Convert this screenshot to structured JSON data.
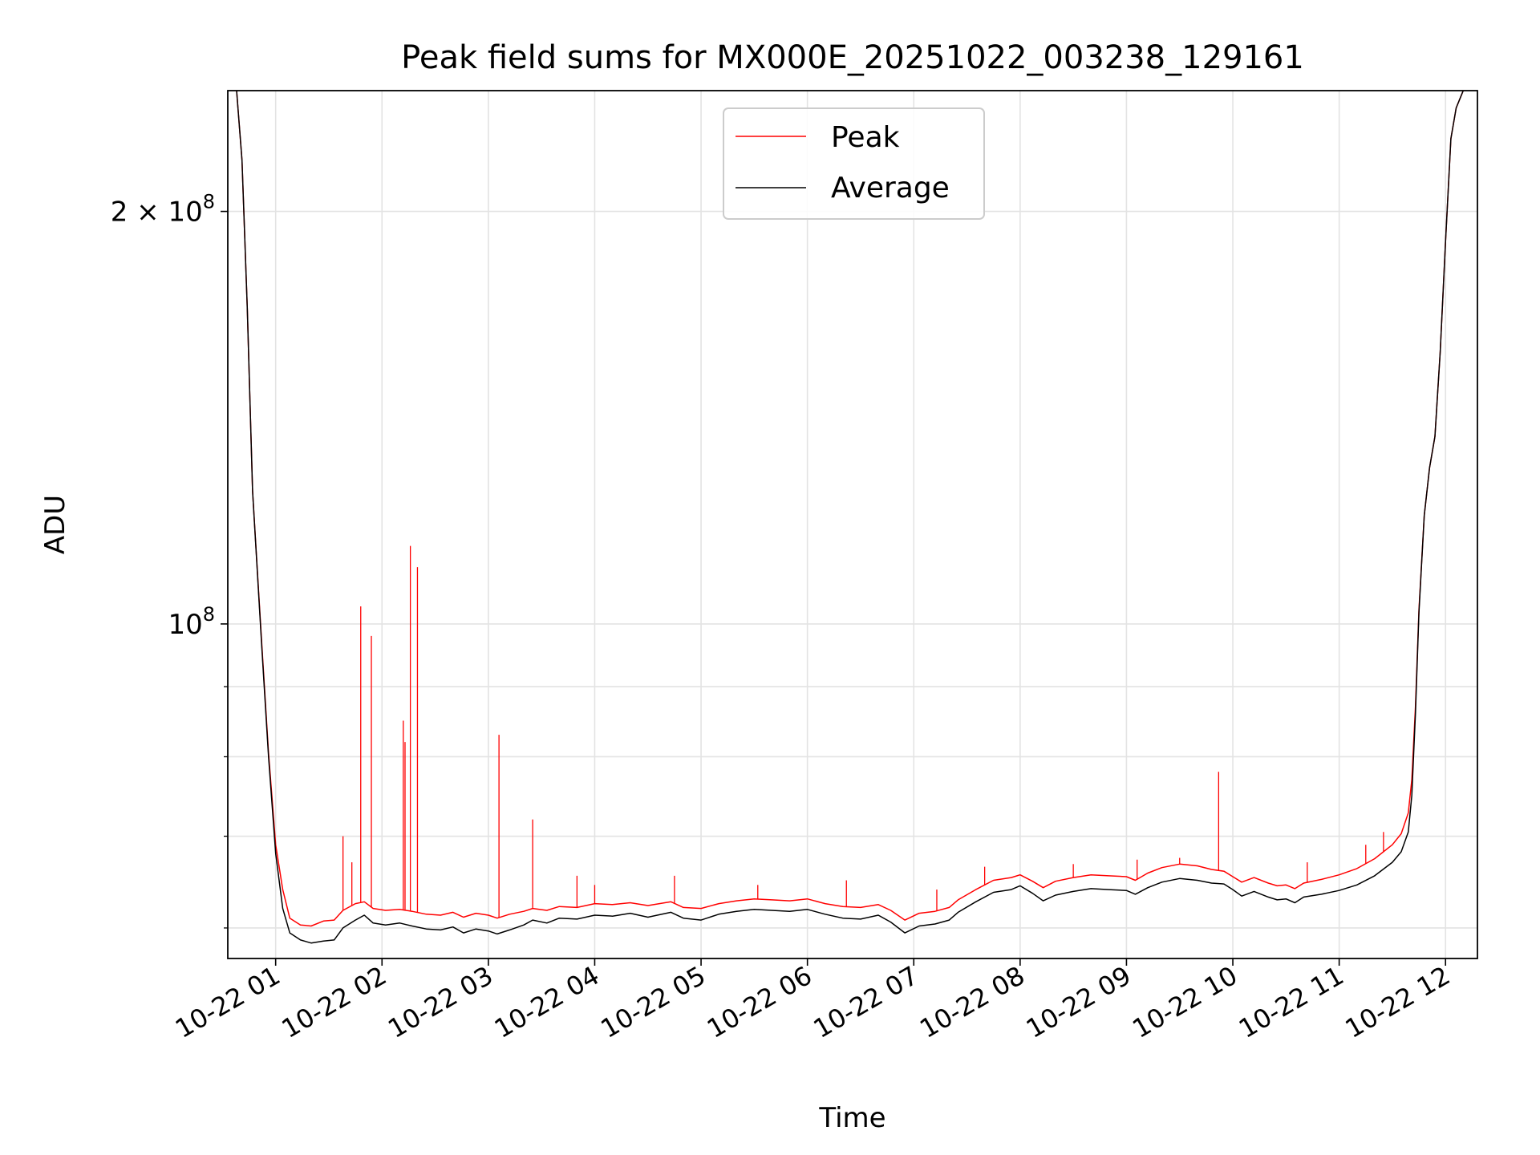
{
  "chart_data": {
    "type": "line",
    "title": "Peak field sums for MX000E_20251022_003238_129161",
    "xlabel": "Time",
    "ylabel": "ADU",
    "xlim": [
      "2025-10-22 00:33",
      "2025-10-22 12:18"
    ],
    "ylim": [
      57000000,
      245000000
    ],
    "yscale": "log",
    "grid": true,
    "legend": {
      "placement": "top-center",
      "entries": [
        "Peak",
        "Average"
      ]
    },
    "x_ticks": [
      {
        "time": "2025-10-22 01:00",
        "label": "10-22 01"
      },
      {
        "time": "2025-10-22 02:00",
        "label": "10-22 02"
      },
      {
        "time": "2025-10-22 03:00",
        "label": "10-22 03"
      },
      {
        "time": "2025-10-22 04:00",
        "label": "10-22 04"
      },
      {
        "time": "2025-10-22 05:00",
        "label": "10-22 05"
      },
      {
        "time": "2025-10-22 06:00",
        "label": "10-22 06"
      },
      {
        "time": "2025-10-22 07:00",
        "label": "10-22 07"
      },
      {
        "time": "2025-10-22 08:00",
        "label": "10-22 08"
      },
      {
        "time": "2025-10-22 09:00",
        "label": "10-22 09"
      },
      {
        "time": "2025-10-22 10:00",
        "label": "10-22 10"
      },
      {
        "time": "2025-10-22 11:00",
        "label": "10-22 11"
      },
      {
        "time": "2025-10-22 12:00",
        "label": "10-22 12"
      }
    ],
    "y_major_ticks": [
      {
        "value": 100000000,
        "base": "10",
        "exp": "8",
        "coef": ""
      },
      {
        "value": 200000000,
        "base": "10",
        "exp": "8",
        "coef": "2"
      }
    ],
    "y_minor_ticks": [
      60000000,
      70000000,
      80000000,
      90000000
    ],
    "series": [
      {
        "name": "Average",
        "color": "#000000",
        "points": [
          [
            "00:38",
            245000000
          ],
          [
            "00:41",
            218000000
          ],
          [
            "00:44",
            170000000
          ],
          [
            "00:47",
            125000000
          ],
          [
            "00:52",
            97000000
          ],
          [
            "00:56",
            80000000
          ],
          [
            "01:00",
            68000000
          ],
          [
            "01:04",
            62000000
          ],
          [
            "01:08",
            59500000
          ],
          [
            "01:14",
            58800000
          ],
          [
            "01:20",
            58500000
          ],
          [
            "01:27",
            58700000
          ],
          [
            "01:33",
            58800000
          ],
          [
            "01:38",
            60000000
          ],
          [
            "01:45",
            60800000
          ],
          [
            "01:50",
            61300000
          ],
          [
            "01:55",
            60500000
          ],
          [
            "02:02",
            60300000
          ],
          [
            "02:10",
            60500000
          ],
          [
            "02:17",
            60200000
          ],
          [
            "02:25",
            59900000
          ],
          [
            "02:33",
            59800000
          ],
          [
            "02:40",
            60100000
          ],
          [
            "02:46",
            59500000
          ],
          [
            "02:53",
            59900000
          ],
          [
            "03:00",
            59700000
          ],
          [
            "03:05",
            59400000
          ],
          [
            "03:12",
            59800000
          ],
          [
            "03:20",
            60300000
          ],
          [
            "03:25",
            60800000
          ],
          [
            "03:33",
            60500000
          ],
          [
            "03:40",
            61000000
          ],
          [
            "03:50",
            60900000
          ],
          [
            "04:00",
            61300000
          ],
          [
            "04:10",
            61200000
          ],
          [
            "04:20",
            61500000
          ],
          [
            "04:30",
            61100000
          ],
          [
            "04:43",
            61600000
          ],
          [
            "04:50",
            61000000
          ],
          [
            "05:00",
            60800000
          ],
          [
            "05:10",
            61400000
          ],
          [
            "05:20",
            61700000
          ],
          [
            "05:30",
            61900000
          ],
          [
            "05:40",
            61800000
          ],
          [
            "05:50",
            61700000
          ],
          [
            "06:00",
            61900000
          ],
          [
            "06:10",
            61400000
          ],
          [
            "06:20",
            61000000
          ],
          [
            "06:30",
            60900000
          ],
          [
            "06:40",
            61300000
          ],
          [
            "06:47",
            60600000
          ],
          [
            "06:55",
            59500000
          ],
          [
            "07:03",
            60200000
          ],
          [
            "07:12",
            60400000
          ],
          [
            "07:20",
            60800000
          ],
          [
            "07:25",
            61600000
          ],
          [
            "07:35",
            62700000
          ],
          [
            "07:45",
            63700000
          ],
          [
            "07:55",
            64000000
          ],
          [
            "08:00",
            64400000
          ],
          [
            "08:07",
            63600000
          ],
          [
            "08:13",
            62800000
          ],
          [
            "08:20",
            63400000
          ],
          [
            "08:30",
            63800000
          ],
          [
            "08:40",
            64100000
          ],
          [
            "08:50",
            64000000
          ],
          [
            "09:00",
            63900000
          ],
          [
            "09:05",
            63500000
          ],
          [
            "09:12",
            64200000
          ],
          [
            "09:20",
            64800000
          ],
          [
            "09:30",
            65200000
          ],
          [
            "09:40",
            65000000
          ],
          [
            "09:48",
            64700000
          ],
          [
            "09:55",
            64600000
          ],
          [
            "10:00",
            64000000
          ],
          [
            "10:05",
            63300000
          ],
          [
            "10:12",
            63800000
          ],
          [
            "10:20",
            63200000
          ],
          [
            "10:25",
            62900000
          ],
          [
            "10:30",
            63000000
          ],
          [
            "10:35",
            62600000
          ],
          [
            "10:40",
            63200000
          ],
          [
            "10:50",
            63500000
          ],
          [
            "11:00",
            63900000
          ],
          [
            "11:10",
            64500000
          ],
          [
            "11:20",
            65500000
          ],
          [
            "11:30",
            67000000
          ],
          [
            "11:35",
            68200000
          ],
          [
            "11:39",
            70500000
          ],
          [
            "11:41",
            75000000
          ],
          [
            "11:43",
            86000000
          ],
          [
            "11:45",
            102000000
          ],
          [
            "11:48",
            120000000
          ],
          [
            "11:51",
            130000000
          ],
          [
            "11:54",
            137000000
          ],
          [
            "11:57",
            158000000
          ],
          [
            "12:00",
            190000000
          ],
          [
            "12:03",
            226000000
          ],
          [
            "12:06",
            238000000
          ],
          [
            "12:10",
            245000000
          ]
        ]
      },
      {
        "name": "Peak",
        "color": "#ff0000",
        "points": [
          [
            "00:38",
            245000000
          ],
          [
            "00:41",
            218000000
          ],
          [
            "00:44",
            170000000
          ],
          [
            "00:47",
            125000000
          ],
          [
            "00:52",
            97500000
          ],
          [
            "00:56",
            80500000
          ],
          [
            "01:00",
            69000000
          ],
          [
            "01:04",
            64000000
          ],
          [
            "01:08",
            61000000
          ],
          [
            "01:14",
            60300000
          ],
          [
            "01:20",
            60200000
          ],
          [
            "01:27",
            60700000
          ],
          [
            "01:33",
            60800000
          ],
          [
            "01:38",
            61800000
          ],
          [
            "01:45",
            62500000
          ],
          [
            "01:50",
            62700000
          ],
          [
            "01:55",
            62000000
          ],
          [
            "02:02",
            61800000
          ],
          [
            "02:10",
            61900000
          ],
          [
            "02:17",
            61700000
          ],
          [
            "02:25",
            61400000
          ],
          [
            "02:33",
            61300000
          ],
          [
            "02:40",
            61600000
          ],
          [
            "02:46",
            61100000
          ],
          [
            "02:53",
            61500000
          ],
          [
            "03:00",
            61300000
          ],
          [
            "03:05",
            61000000
          ],
          [
            "03:12",
            61400000
          ],
          [
            "03:20",
            61700000
          ],
          [
            "03:25",
            62000000
          ],
          [
            "03:33",
            61800000
          ],
          [
            "03:40",
            62200000
          ],
          [
            "03:50",
            62100000
          ],
          [
            "04:00",
            62500000
          ],
          [
            "04:10",
            62400000
          ],
          [
            "04:20",
            62600000
          ],
          [
            "04:30",
            62300000
          ],
          [
            "04:43",
            62700000
          ],
          [
            "04:50",
            62100000
          ],
          [
            "05:00",
            62000000
          ],
          [
            "05:10",
            62500000
          ],
          [
            "05:20",
            62800000
          ],
          [
            "05:30",
            63000000
          ],
          [
            "05:40",
            62900000
          ],
          [
            "05:50",
            62800000
          ],
          [
            "06:00",
            63000000
          ],
          [
            "06:10",
            62500000
          ],
          [
            "06:20",
            62200000
          ],
          [
            "06:30",
            62100000
          ],
          [
            "06:40",
            62400000
          ],
          [
            "06:47",
            61800000
          ],
          [
            "06:55",
            60800000
          ],
          [
            "07:03",
            61500000
          ],
          [
            "07:12",
            61700000
          ],
          [
            "07:20",
            62100000
          ],
          [
            "07:25",
            62900000
          ],
          [
            "07:35",
            64000000
          ],
          [
            "07:45",
            65000000
          ],
          [
            "07:55",
            65300000
          ],
          [
            "08:00",
            65600000
          ],
          [
            "08:07",
            64900000
          ],
          [
            "08:13",
            64200000
          ],
          [
            "08:20",
            64900000
          ],
          [
            "08:30",
            65300000
          ],
          [
            "08:40",
            65600000
          ],
          [
            "08:50",
            65500000
          ],
          [
            "09:00",
            65400000
          ],
          [
            "09:05",
            65000000
          ],
          [
            "09:12",
            65800000
          ],
          [
            "09:20",
            66400000
          ],
          [
            "09:30",
            66800000
          ],
          [
            "09:40",
            66600000
          ],
          [
            "09:48",
            66200000
          ],
          [
            "09:55",
            66000000
          ],
          [
            "10:00",
            65400000
          ],
          [
            "10:05",
            64800000
          ],
          [
            "10:12",
            65300000
          ],
          [
            "10:20",
            64700000
          ],
          [
            "10:25",
            64400000
          ],
          [
            "10:30",
            64500000
          ],
          [
            "10:35",
            64100000
          ],
          [
            "10:40",
            64700000
          ],
          [
            "10:50",
            65100000
          ],
          [
            "11:00",
            65600000
          ],
          [
            "11:10",
            66300000
          ],
          [
            "11:20",
            67400000
          ],
          [
            "11:30",
            69000000
          ],
          [
            "11:35",
            70300000
          ],
          [
            "11:39",
            72800000
          ],
          [
            "11:41",
            77000000
          ],
          [
            "11:43",
            87000000
          ],
          [
            "11:45",
            102500000
          ],
          [
            "11:48",
            120000000
          ],
          [
            "11:51",
            130000000
          ],
          [
            "11:54",
            137000000
          ],
          [
            "11:57",
            158000000
          ],
          [
            "12:00",
            190000000
          ],
          [
            "12:03",
            226000000
          ],
          [
            "12:06",
            238000000
          ],
          [
            "12:10",
            245000000
          ]
        ],
        "spikes": [
          [
            "01:38",
            70000000
          ],
          [
            "01:43",
            67000000
          ],
          [
            "01:48",
            103000000
          ],
          [
            "01:54",
            98000000
          ],
          [
            "02:12",
            85000000
          ],
          [
            "02:13",
            82000000
          ],
          [
            "02:16",
            114000000
          ],
          [
            "02:20",
            110000000
          ],
          [
            "03:06",
            83000000
          ],
          [
            "03:25",
            72000000
          ],
          [
            "03:50",
            65500000
          ],
          [
            "04:00",
            64500000
          ],
          [
            "04:45",
            65500000
          ],
          [
            "05:32",
            64500000
          ],
          [
            "06:22",
            65000000
          ],
          [
            "07:13",
            64000000
          ],
          [
            "07:40",
            66500000
          ],
          [
            "08:30",
            66800000
          ],
          [
            "09:06",
            67300000
          ],
          [
            "09:30",
            67500000
          ],
          [
            "09:52",
            78000000
          ],
          [
            "10:42",
            67000000
          ],
          [
            "11:15",
            69000000
          ],
          [
            "11:25",
            70500000
          ]
        ]
      }
    ]
  }
}
